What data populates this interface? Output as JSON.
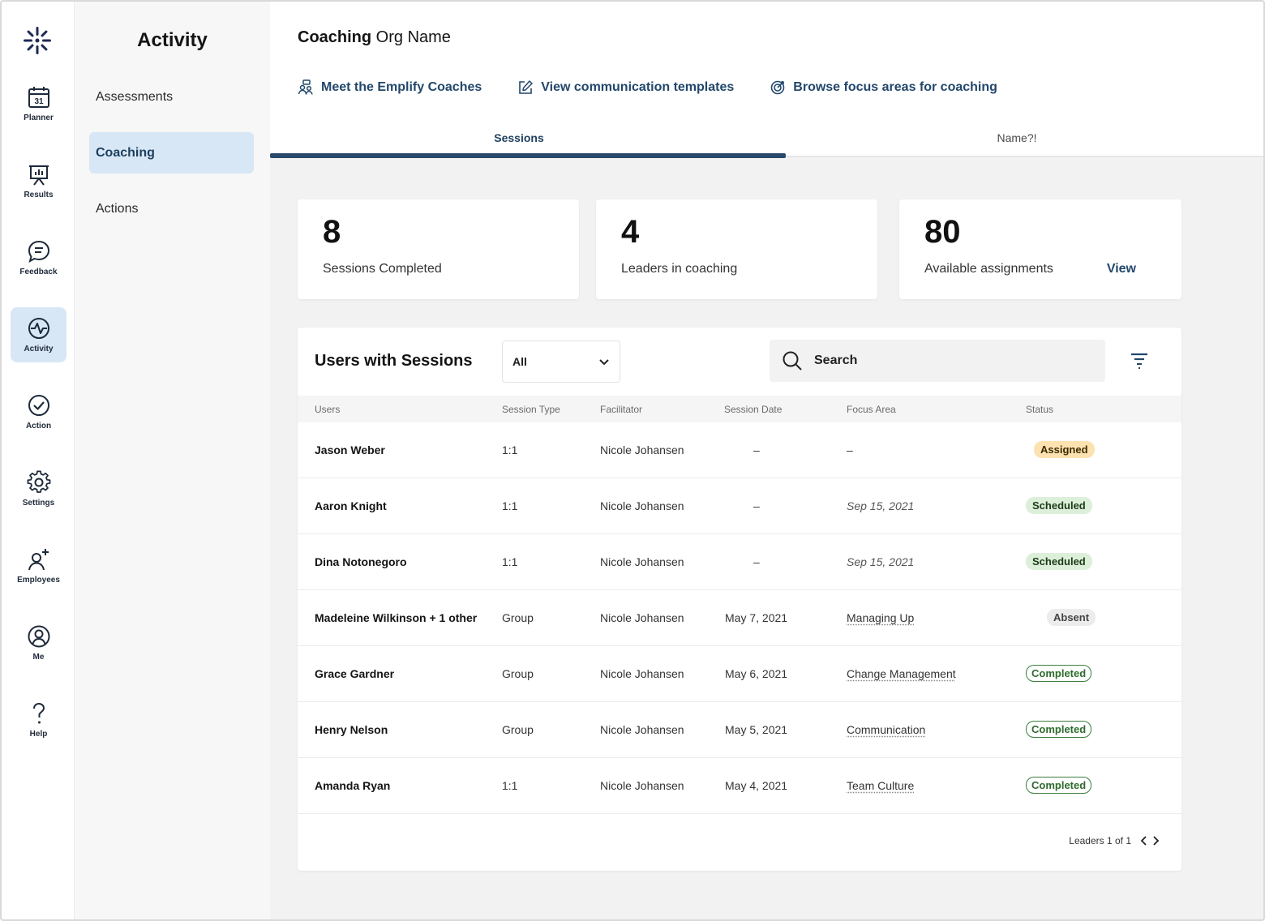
{
  "rail": {
    "items": [
      {
        "label": "Planner",
        "icon": "calendar-icon",
        "day": "31"
      },
      {
        "label": "Results",
        "icon": "presentation-chart-icon"
      },
      {
        "label": "Feedback",
        "icon": "chat-bubble-icon"
      },
      {
        "label": "Activity",
        "icon": "pulse-icon"
      },
      {
        "label": "Action",
        "icon": "check-circle-icon"
      },
      {
        "label": "Settings",
        "icon": "gear-icon"
      },
      {
        "label": "Employees",
        "icon": "add-user-icon"
      },
      {
        "label": "Me",
        "icon": "profile-icon"
      },
      {
        "label": "Help",
        "icon": "question-icon"
      }
    ]
  },
  "subnav": {
    "title": "Activity",
    "items": [
      {
        "label": "Assessments"
      },
      {
        "label": "Coaching"
      },
      {
        "label": "Actions"
      }
    ]
  },
  "header": {
    "org_bold": "Coaching",
    "org_rest": " Org Name",
    "links": [
      {
        "label": "Meet the Emplify Coaches",
        "icon": "coaches-icon"
      },
      {
        "label": "View communication templates",
        "icon": "edit-icon"
      },
      {
        "label": "Browse focus areas for coaching",
        "icon": "target-icon"
      }
    ],
    "tabs": [
      {
        "label": "Sessions"
      },
      {
        "label": "Name?!"
      }
    ]
  },
  "stats": [
    {
      "value": "8",
      "label": "Sessions Completed"
    },
    {
      "value": "4",
      "label": "Leaders in coaching"
    },
    {
      "value": "80",
      "label": "Available assignments",
      "link": "View"
    }
  ],
  "table": {
    "title": "Users with Sessions",
    "filter_value": "All",
    "search_placeholder": "Search",
    "columns": [
      "Users",
      "Session Type",
      "Facilitator",
      "Session Date",
      "Focus Area",
      "Status"
    ],
    "rows": [
      {
        "user": "Jason Weber",
        "type": "1:1",
        "facilitator": "Nicole Johansen",
        "date": "–",
        "focus": "–",
        "status": "Assigned"
      },
      {
        "user": "Aaron Knight",
        "type": "1:1",
        "facilitator": "Nicole Johansen",
        "date": "–",
        "focus": "Sep 15, 2021",
        "status": "Scheduled"
      },
      {
        "user": "Dina Notonegoro",
        "type": "1:1",
        "facilitator": "Nicole Johansen",
        "date": "–",
        "focus": "Sep 15, 2021",
        "status": "Scheduled"
      },
      {
        "user": "Madeleine Wilkinson + 1 other",
        "type": "Group",
        "facilitator": "Nicole Johansen",
        "date": "May 7, 2021",
        "focus": "Managing Up",
        "status": "Absent"
      },
      {
        "user": "Grace Gardner",
        "type": "Group",
        "facilitator": "Nicole Johansen",
        "date": "May 6, 2021",
        "focus": "Change Management",
        "status": "Completed"
      },
      {
        "user": "Henry Nelson",
        "type": "Group",
        "facilitator": "Nicole Johansen",
        "date": "May 5, 2021",
        "focus": "Communication",
        "status": "Completed"
      },
      {
        "user": "Amanda Ryan",
        "type": "1:1",
        "facilitator": "Nicole Johansen",
        "date": "May 4, 2021",
        "focus": "Team Culture",
        "status": "Completed"
      }
    ],
    "pager": "Leaders 1 of 1"
  },
  "colors": {
    "accent": "#22476b",
    "active_bg": "#d8e7f5",
    "assigned": "#fbe2b0",
    "scheduled": "#dcf0d9",
    "completed": "#3c7d3c"
  }
}
